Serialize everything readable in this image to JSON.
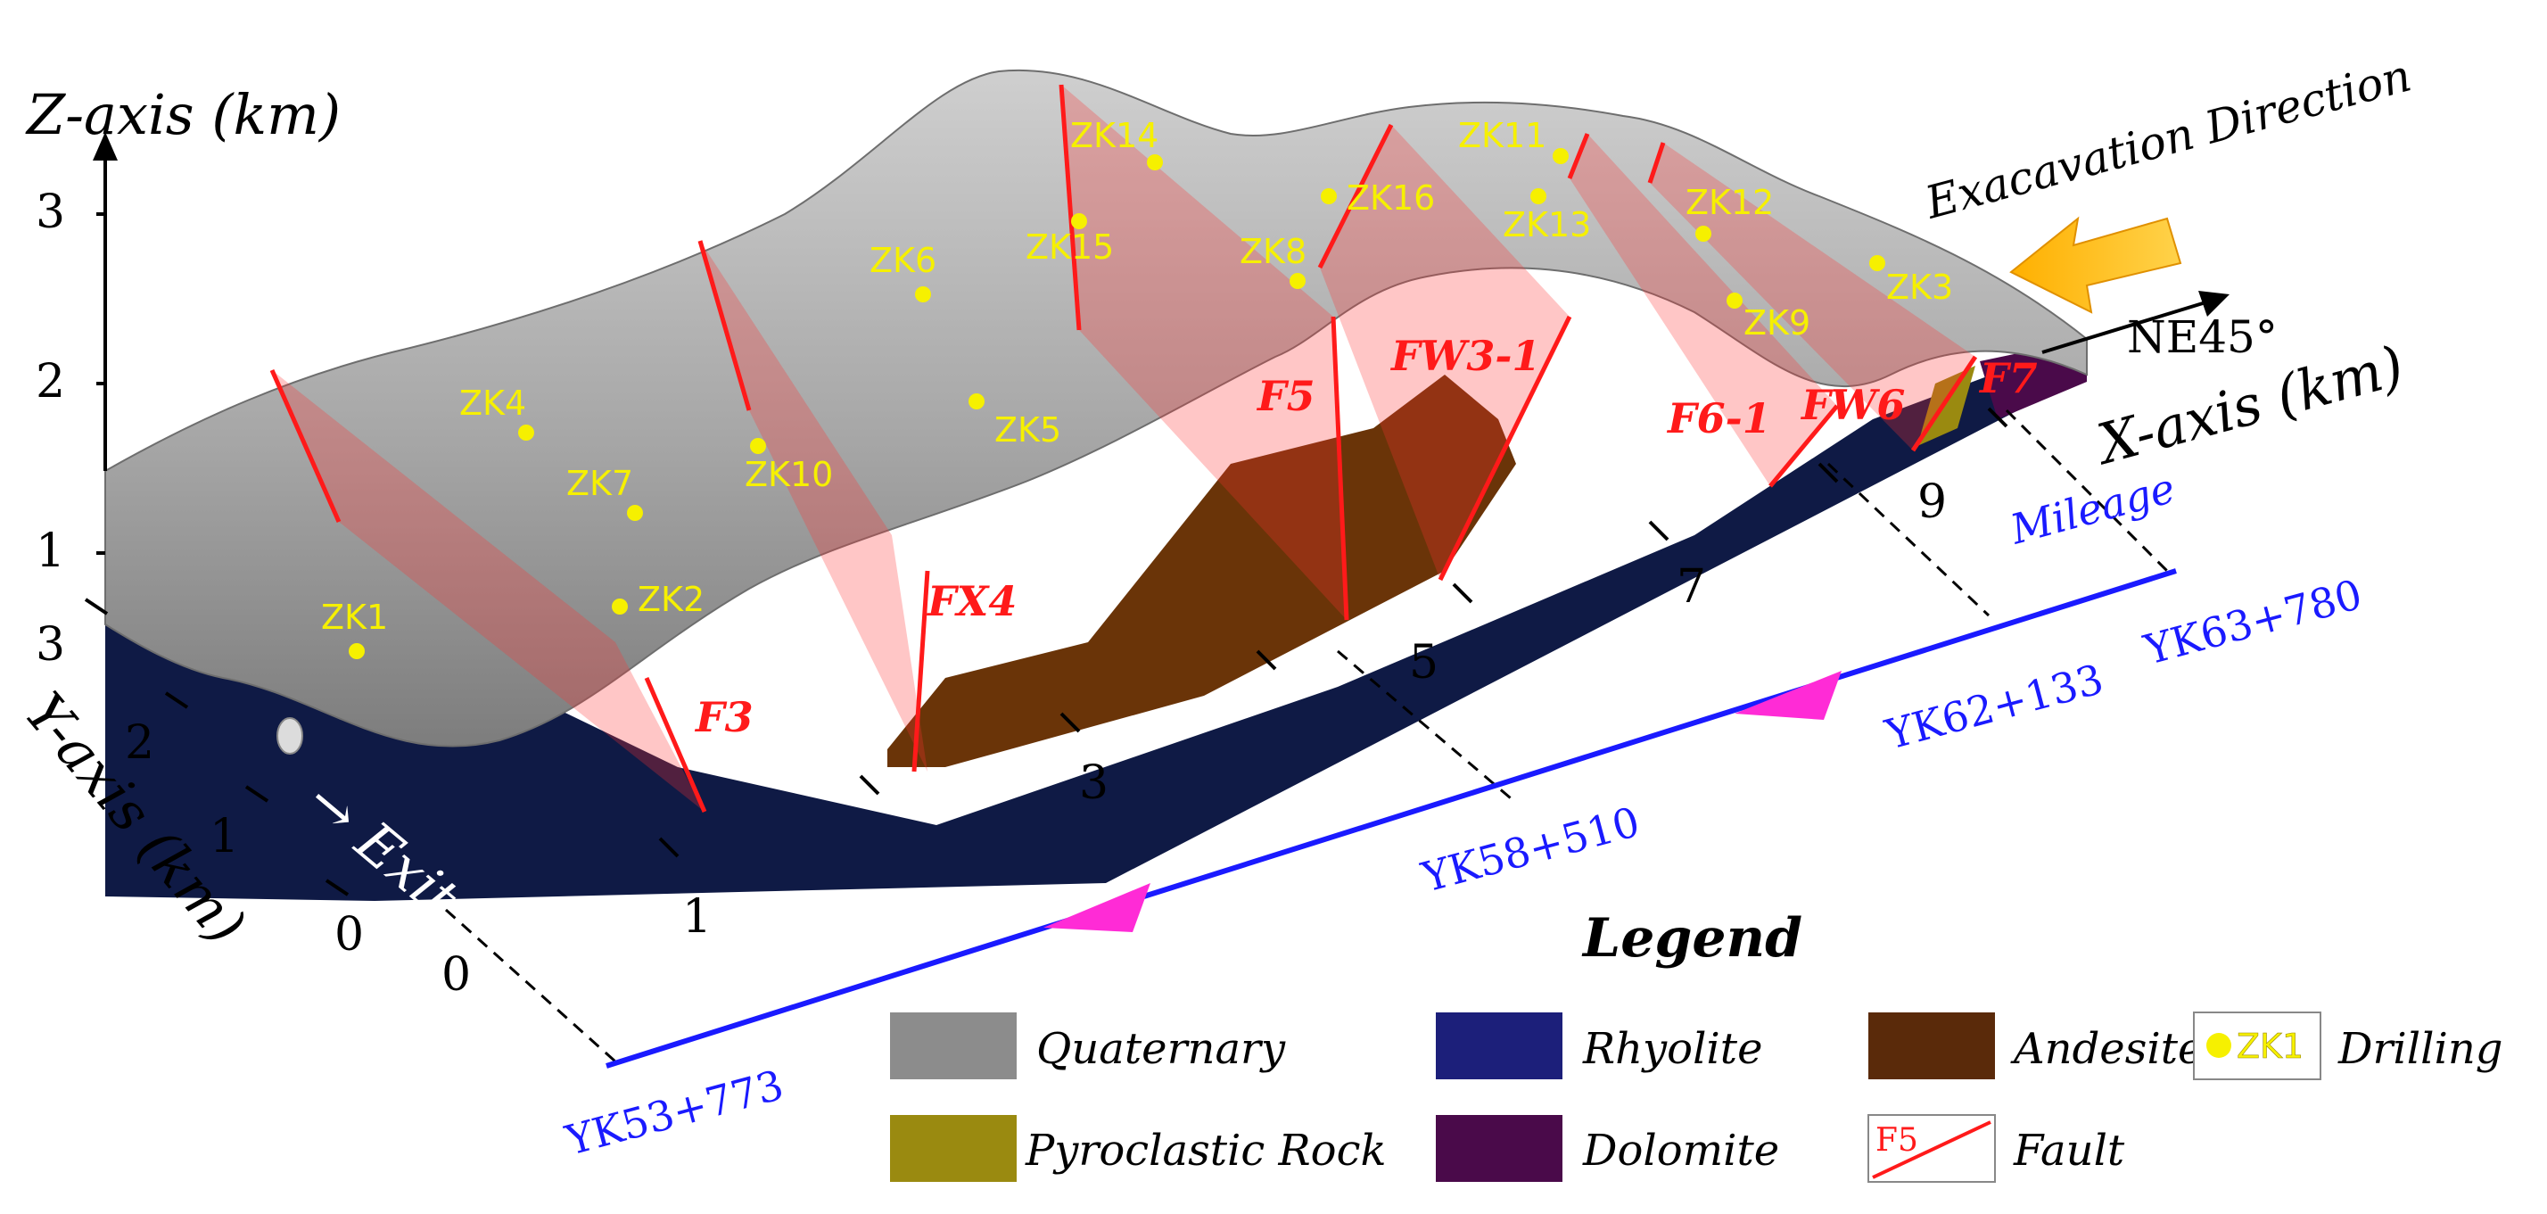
{
  "axes": {
    "z_label": "Z-axis (km)",
    "x_label": "X-axis (km)",
    "y_label": "Y-axis (km)",
    "z_ticks": [
      "3",
      "2",
      "1"
    ],
    "y_ticks": [
      "3",
      "2",
      "1",
      "0"
    ],
    "x_ticks": [
      "0",
      "1",
      "3",
      "5",
      "7",
      "9"
    ]
  },
  "direction": {
    "excavation": "Exacavation Direction",
    "bearing": "NE45°",
    "exit": "Exit"
  },
  "drillings": [
    "ZK1",
    "ZK2",
    "ZK3",
    "ZK4",
    "ZK5",
    "ZK6",
    "ZK7",
    "ZK8",
    "ZK9",
    "ZK10",
    "ZK11",
    "ZK12",
    "ZK13",
    "ZK14",
    "ZK15",
    "ZK16"
  ],
  "faults": [
    "F3",
    "FX4",
    "F5",
    "FW3-1",
    "F6-1",
    "FW6",
    "F7"
  ],
  "mileage": {
    "title": "Mileage",
    "points": [
      "YK53+773",
      "YK58+510",
      "YK62+133",
      "YK63+780"
    ]
  },
  "legend": {
    "title": "Legend",
    "items": [
      {
        "label": "Quaternary",
        "color": "#8c8c8c"
      },
      {
        "label": "Rhyolite",
        "color": "#1c1f7a"
      },
      {
        "label": "Andesite",
        "color": "#5a2a0a"
      },
      {
        "label": "Drilling",
        "color": "#f6f000"
      },
      {
        "label": "Pyroclastic Rock",
        "color": "#9a8a10"
      },
      {
        "label": "Dolomite",
        "color": "#4a0a4a"
      },
      {
        "label": "Fault",
        "color": "#ff1a1a"
      }
    ],
    "drilling_sample": "ZK1",
    "fault_sample": "F5"
  },
  "colors": {
    "rhyolite": "#0f1a45",
    "quaternary": "#a9a9a9",
    "andesite": "#6a3408",
    "fault": "#ff1a1a",
    "mileage": "#1a1aff",
    "arrow": "#ff2bd6"
  }
}
